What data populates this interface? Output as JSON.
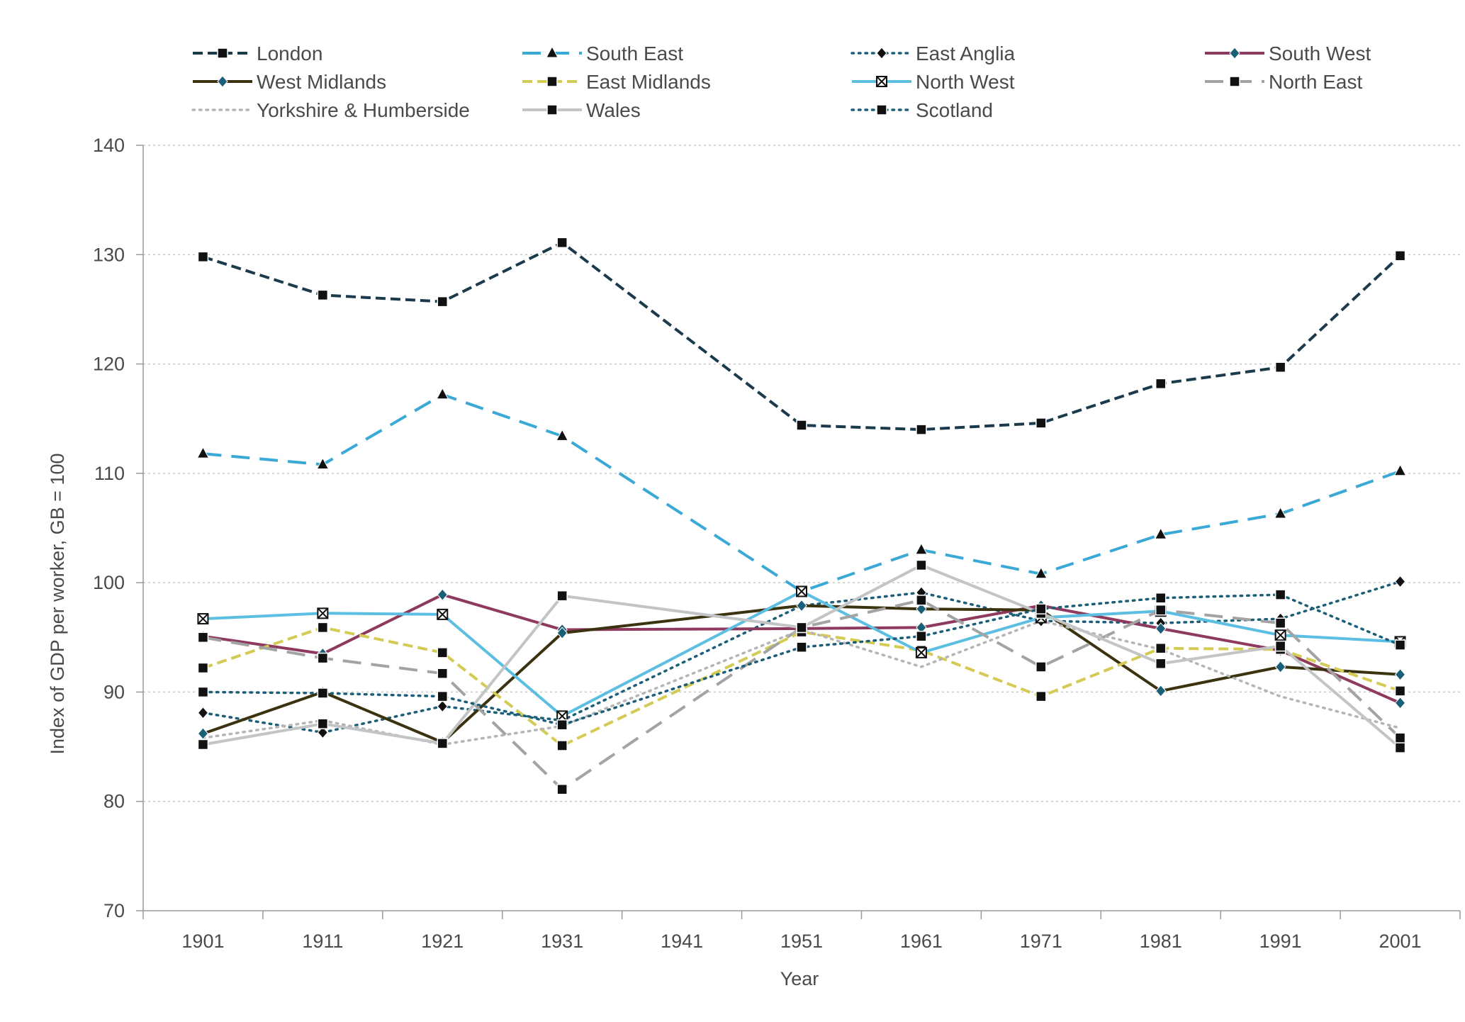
{
  "chart_data": {
    "type": "line",
    "title": "",
    "xlabel": "Year",
    "ylabel": "Index of GDP per worker, GB = 100",
    "ylim": [
      70,
      140
    ],
    "yticks": [
      70,
      80,
      90,
      100,
      110,
      120,
      130,
      140
    ],
    "grid": "horizontal dotted",
    "legend_position": "top",
    "categories": [
      "1901",
      "1911",
      "1921",
      "1931",
      "1941",
      "1951",
      "1961",
      "1971",
      "1981",
      "1991",
      "2001"
    ],
    "series": [
      {
        "name": "London",
        "color": "#1b3a4b",
        "dash": "dash",
        "marker": "square",
        "values": [
          129.8,
          126.3,
          125.7,
          131.1,
          null,
          114.4,
          114.0,
          114.6,
          118.2,
          119.7,
          129.9
        ]
      },
      {
        "name": "South East",
        "color": "#3aa9d6",
        "dash": "longdash",
        "marker": "triangle",
        "values": [
          111.8,
          110.8,
          117.2,
          113.4,
          null,
          99.2,
          103.0,
          100.8,
          104.4,
          106.3,
          110.2
        ]
      },
      {
        "name": "East Anglia",
        "color": "#1b5e78",
        "dash": "dot",
        "marker": "diamond",
        "values": [
          88.1,
          86.3,
          88.7,
          87.4,
          null,
          97.9,
          99.1,
          96.5,
          96.3,
          96.7,
          100.1
        ]
      },
      {
        "name": "South West",
        "color": "#8e3a5e",
        "dash": "solid",
        "marker": "diamond",
        "values": [
          95.1,
          93.5,
          98.9,
          95.7,
          null,
          95.8,
          95.9,
          97.9,
          95.8,
          93.8,
          89.0
        ]
      },
      {
        "name": "West Midlands",
        "color": "#3b3210",
        "dash": "solid",
        "marker": "diamond",
        "values": [
          86.2,
          90.0,
          85.4,
          95.4,
          null,
          97.9,
          97.6,
          97.5,
          90.1,
          92.3,
          91.6
        ]
      },
      {
        "name": "East Midlands",
        "color": "#d4cb55",
        "dash": "dash",
        "marker": "square",
        "values": [
          92.2,
          95.9,
          93.6,
          85.1,
          null,
          95.5,
          93.8,
          89.6,
          94.0,
          93.9,
          90.1
        ]
      },
      {
        "name": "North West",
        "color": "#5cbfe2",
        "dash": "solid",
        "marker": "xsquare",
        "values": [
          96.7,
          97.2,
          97.1,
          87.8,
          null,
          99.2,
          93.6,
          96.8,
          97.4,
          95.2,
          94.6
        ]
      },
      {
        "name": "North East",
        "color": "#a3a3a3",
        "dash": "longdash",
        "marker": "square",
        "values": [
          95.0,
          93.1,
          91.7,
          81.1,
          null,
          95.9,
          98.4,
          92.3,
          97.5,
          96.3,
          85.8
        ]
      },
      {
        "name": "Yorkshire & Humberside",
        "color": "#b5b5b5",
        "dash": "dot",
        "marker": "none",
        "values": [
          85.8,
          87.4,
          85.2,
          86.9,
          null,
          95.7,
          92.3,
          96.5,
          93.9,
          89.6,
          86.7
        ]
      },
      {
        "name": "Wales",
        "color": "#c2c4c6",
        "dash": "solid",
        "marker": "square",
        "values": [
          85.2,
          87.1,
          85.3,
          98.8,
          null,
          95.9,
          101.6,
          97.2,
          92.6,
          94.2,
          84.9
        ]
      },
      {
        "name": "Scotland",
        "color": "#1b5e78",
        "dash": "dot",
        "marker": "square",
        "values": [
          90.0,
          89.9,
          89.6,
          87.0,
          null,
          94.1,
          95.1,
          97.6,
          98.6,
          98.9,
          94.3
        ]
      }
    ]
  }
}
